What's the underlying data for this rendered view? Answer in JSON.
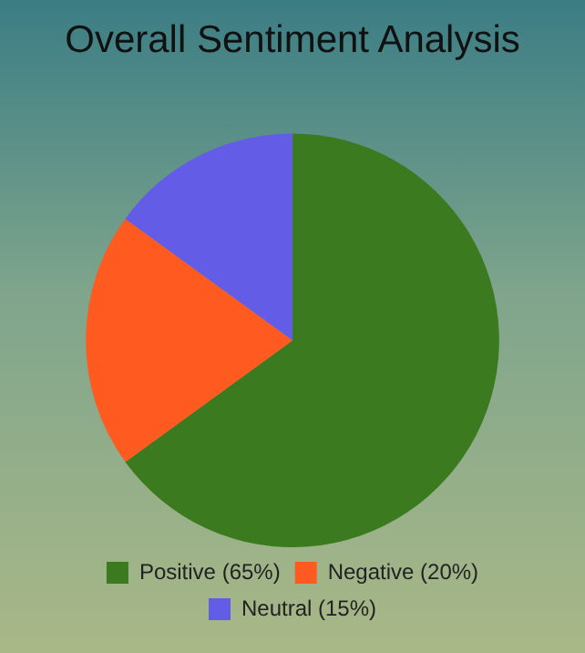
{
  "chart_data": {
    "type": "pie",
    "title": "Overall Sentiment Analysis",
    "categories": [
      "Positive (65%)",
      "Negative (20%)",
      "Neutral (15%)"
    ],
    "values": [
      65,
      20,
      15
    ],
    "colors": [
      "#3b7a1e",
      "#ff5a1f",
      "#625ce6"
    ],
    "legend": "bottom"
  }
}
